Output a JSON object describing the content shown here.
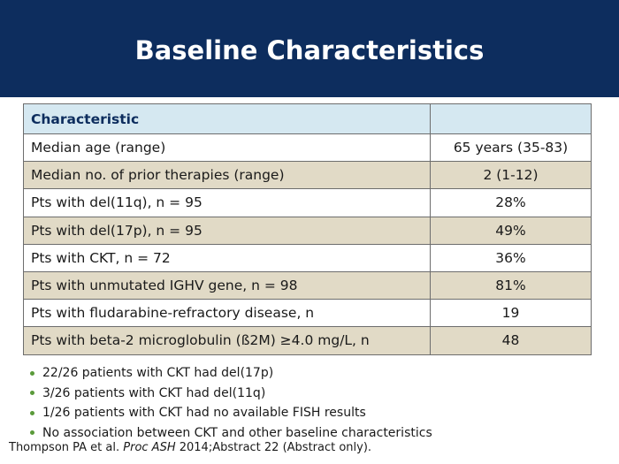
{
  "slide": {
    "title": "Baseline Characteristics"
  },
  "table": {
    "header": {
      "characteristic": "Characteristic",
      "value": ""
    },
    "rows": [
      {
        "label": "Median age (range)",
        "value": "65 years (35-83)"
      },
      {
        "label": "Median no. of prior therapies (range)",
        "value": "2 (1-12)"
      },
      {
        "label": "Pts with del(11q), n = 95",
        "value": "28%"
      },
      {
        "label": "Pts with del(17p), n = 95",
        "value": "49%"
      },
      {
        "label": "Pts with CKT, n = 72",
        "value": "36%"
      },
      {
        "label": "Pts with unmutated IGHV gene, n = 98",
        "value": "81%"
      },
      {
        "label": "Pts with fludarabine-refractory disease, n",
        "value": "19"
      },
      {
        "label": "Pts with beta-2 microglobulin (ß2M) ≥4.0 mg/L, n",
        "value": "48"
      }
    ]
  },
  "bullets": [
    "22/26 patients with CKT had del(17p)",
    "3/26 patients with CKT had del(11q)",
    "1/26 patients with CKT had no available FISH results",
    "No association between CKT and other baseline characteristics"
  ],
  "citation": {
    "authors": "Thompson PA et al. ",
    "journal": "Proc ASH",
    "rest": " 2014;Abstract 22 (Abstract only)."
  },
  "colors": {
    "header_bg": "#0d2d5e",
    "table_header_bg": "#d5e8f1",
    "row_alt_bg": "#e1dac6",
    "bullet": "#5a9a3a"
  }
}
